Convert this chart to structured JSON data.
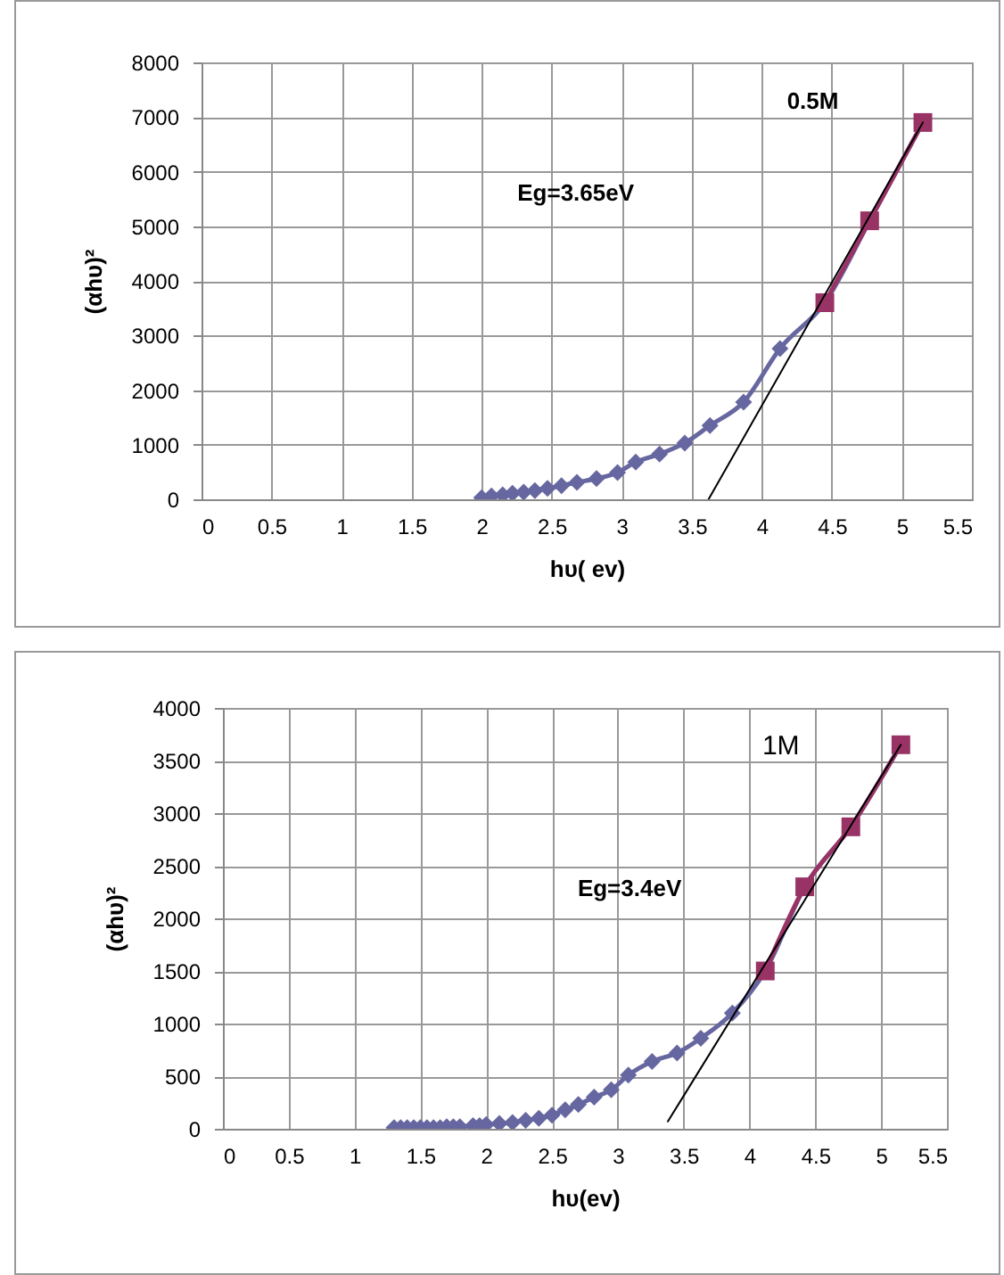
{
  "chart_data": [
    {
      "type": "line",
      "xlabel": "hυ( ev)",
      "ylabel": "(αhυ)²",
      "xlim": [
        0,
        5.5
      ],
      "ylim": [
        0,
        8000
      ],
      "xticks": [
        0,
        0.5,
        1,
        1.5,
        2,
        2.5,
        3,
        3.5,
        4,
        4.5,
        5,
        5.5
      ],
      "yticks": [
        0,
        1000,
        2000,
        3000,
        4000,
        5000,
        6000,
        7000,
        8000
      ],
      "grid": true,
      "annotations": [
        "Eg=3.65eV",
        "0.5M"
      ],
      "series": [
        {
          "color": "#6666a0",
          "marker": "diamond",
          "x": [
            2.0,
            2.07,
            2.15,
            2.22,
            2.3,
            2.38,
            2.47,
            2.57,
            2.68,
            2.82,
            2.97,
            3.1,
            3.27,
            3.45,
            3.63,
            3.87,
            4.13,
            4.45,
            4.77,
            5.15
          ],
          "values": [
            30,
            60,
            80,
            110,
            130,
            160,
            200,
            250,
            310,
            380,
            490,
            680,
            830,
            1030,
            1350,
            1780,
            2760,
            3600,
            5100,
            6900
          ]
        },
        {
          "color": "#993366",
          "marker": "square",
          "x": [
            4.45,
            4.77,
            5.15
          ],
          "values": [
            3600,
            5100,
            6900
          ]
        },
        {
          "color": "#000000",
          "marker": "none",
          "x": [
            3.62,
            5.15
          ],
          "values": [
            0,
            6900
          ]
        }
      ]
    },
    {
      "type": "line",
      "xlabel": "hυ(ev)",
      "ylabel": "(αhυ)²",
      "xlim": [
        0,
        5.5
      ],
      "ylim": [
        0,
        4000
      ],
      "xticks": [
        0,
        0.5,
        1,
        1.5,
        2,
        2.5,
        3,
        3.5,
        4,
        4.5,
        5,
        5.5
      ],
      "yticks": [
        0,
        500,
        1000,
        1500,
        2000,
        2500,
        3000,
        3500,
        4000
      ],
      "grid": true,
      "annotations": [
        "Eg=3.4eV",
        "1M"
      ],
      "series": [
        {
          "color": "#6666a0",
          "marker": "diamond",
          "x": [
            1.3,
            1.35,
            1.4,
            1.45,
            1.5,
            1.55,
            1.6,
            1.65,
            1.7,
            1.75,
            1.8,
            1.9,
            1.95,
            2.0,
            2.1,
            2.2,
            2.3,
            2.4,
            2.5,
            2.6,
            2.7,
            2.82,
            2.95,
            3.08,
            3.26,
            3.45,
            3.63,
            3.87,
            4.12,
            4.42,
            4.77,
            5.15
          ],
          "values": [
            10,
            10,
            10,
            10,
            10,
            10,
            10,
            10,
            20,
            20,
            20,
            30,
            30,
            40,
            50,
            60,
            80,
            100,
            130,
            180,
            230,
            300,
            370,
            510,
            640,
            720,
            860,
            1100,
            1500,
            2300,
            2870,
            3650
          ]
        },
        {
          "color": "#993366",
          "marker": "square",
          "x": [
            4.12,
            4.42,
            4.77,
            5.15
          ],
          "values": [
            1500,
            2300,
            2870,
            3650
          ]
        },
        {
          "color": "#000000",
          "marker": "none",
          "x": [
            3.38,
            5.15
          ],
          "values": [
            70,
            3650
          ]
        }
      ]
    }
  ]
}
